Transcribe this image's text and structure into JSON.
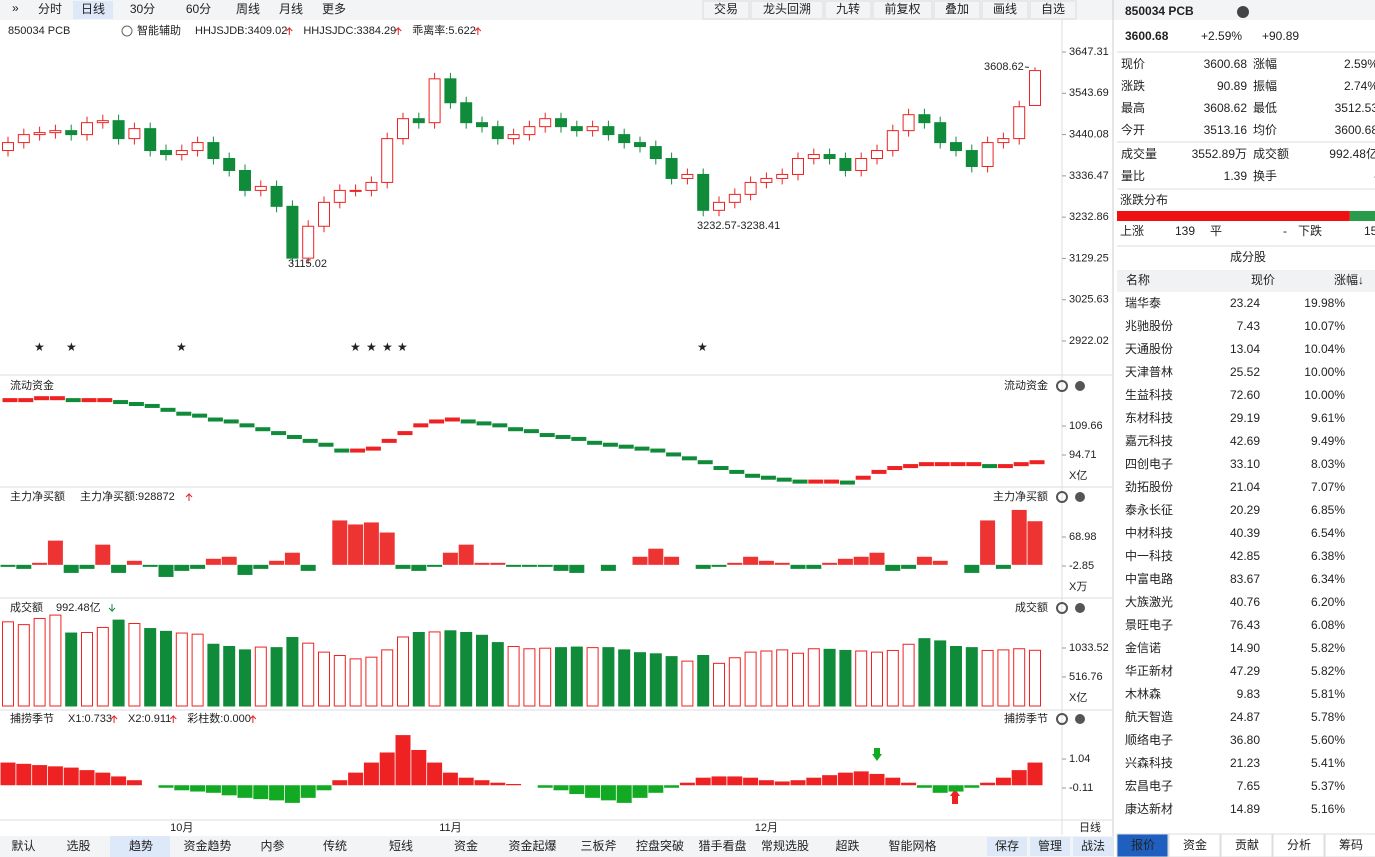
{
  "toolbar": {
    "left": [
      "分时",
      "日线",
      "30分",
      "60分",
      "周线",
      "月线",
      "更多"
    ],
    "active": 1,
    "right": [
      "交易",
      "龙头回溯",
      "九转",
      "前复权",
      "叠加",
      "画线",
      "自选"
    ]
  },
  "main": {
    "title": "850034 PCB",
    "indicator": "智能辅助",
    "items": [
      {
        "text": "HHJSJDB:3409.02",
        "color": "#d79a00"
      },
      {
        "text": "HHJSJDC:3384.29",
        "color": "#e52222"
      },
      {
        "text": "乖离率:5.622",
        "color": "#e06000"
      }
    ],
    "high_label": "3608.62",
    "low_label": "3115.02",
    "range_label": "3232.57-3238.41",
    "x_axis_label": "日线"
  },
  "panels": {
    "flow": {
      "left": "流动资金",
      "right": "流动资金",
      "unit": "X亿"
    },
    "net": {
      "left": "主力净买额",
      "value": "主力净买额:928872",
      "right": "主力净买额",
      "unit": "X万"
    },
    "volume": {
      "left": "成交额",
      "value": "992.48亿",
      "right": "成交额",
      "unit": "X亿"
    },
    "fishing": {
      "left": "捕捞季节",
      "items": [
        {
          "text": "X1:0.733",
          "color": "#e0a000"
        },
        {
          "text": "X2:0.911",
          "color": "#e020e0"
        },
        {
          "text": "彩柱数:0.000",
          "color": "#209020"
        }
      ],
      "right": "捕捞季节"
    }
  },
  "chart_data": [
    {
      "type": "candlestick",
      "categories": [
        null,
        null,
        null,
        null,
        null,
        null,
        null,
        null,
        null,
        null,
        null,
        "10月",
        null,
        null,
        null,
        null,
        null,
        null,
        null,
        null,
        null,
        null,
        null,
        null,
        null,
        null,
        null,
        null,
        "11月",
        null,
        null,
        null,
        null,
        null,
        null,
        null,
        null,
        null,
        null,
        null,
        null,
        null,
        null,
        null,
        null,
        null,
        null,
        null,
        "12月",
        null,
        null,
        null,
        null,
        null,
        null,
        null,
        null,
        null,
        null,
        null,
        null,
        null,
        null,
        null,
        null,
        null
      ],
      "open": [
        3400,
        3420,
        3440,
        3445,
        3450,
        3440,
        3470,
        3475,
        3430,
        3455,
        3400,
        3390,
        3400,
        3420,
        3380,
        3350,
        3300,
        3310,
        3260,
        3130,
        3210,
        3270,
        3300,
        3300,
        3320,
        3430,
        3480,
        3470,
        3580,
        3520,
        3470,
        3460,
        3430,
        3440,
        3460,
        3480,
        3460,
        3450,
        3460,
        3440,
        3420,
        3410,
        3380,
        3330,
        3340,
        3250,
        3270,
        3290,
        3320,
        3330,
        3340,
        3380,
        3390,
        3380,
        3350,
        3380,
        3400,
        3450,
        3490,
        3470,
        3420,
        3400,
        3360,
        3420,
        3430,
        3513.16
      ],
      "high": [
        3435,
        3455,
        3460,
        3465,
        3465,
        3485,
        3490,
        3490,
        3470,
        3470,
        3415,
        3415,
        3435,
        3435,
        3395,
        3365,
        3325,
        3325,
        3275,
        3225,
        3285,
        3315,
        3315,
        3335,
        3445,
        3495,
        3495,
        3595,
        3595,
        3535,
        3485,
        3475,
        3455,
        3475,
        3495,
        3495,
        3475,
        3475,
        3475,
        3455,
        3435,
        3425,
        3395,
        3355,
        3355,
        3285,
        3305,
        3335,
        3345,
        3355,
        3395,
        3405,
        3405,
        3395,
        3395,
        3415,
        3465,
        3505,
        3505,
        3485,
        3435,
        3415,
        3435,
        3445,
        3525,
        3608.62
      ],
      "low": [
        3385,
        3405,
        3425,
        3430,
        3425,
        3425,
        3455,
        3415,
        3415,
        3385,
        3375,
        3375,
        3385,
        3365,
        3335,
        3285,
        3285,
        3245,
        3115.02,
        3115,
        3195,
        3255,
        3285,
        3285,
        3305,
        3415,
        3455,
        3455,
        3505,
        3455,
        3445,
        3415,
        3415,
        3425,
        3445,
        3445,
        3435,
        3435,
        3425,
        3405,
        3395,
        3365,
        3315,
        3315,
        3235,
        3235,
        3255,
        3275,
        3305,
        3315,
        3325,
        3365,
        3365,
        3335,
        3335,
        3365,
        3385,
        3435,
        3455,
        3405,
        3385,
        3345,
        3345,
        3405,
        3415,
        3512.53
      ],
      "close": [
        3420,
        3440,
        3445,
        3450,
        3440,
        3470,
        3475,
        3430,
        3455,
        3400,
        3390,
        3400,
        3420,
        3380,
        3350,
        3300,
        3310,
        3260,
        3130,
        3210,
        3270,
        3300,
        3300,
        3320,
        3430,
        3480,
        3470,
        3580,
        3520,
        3470,
        3460,
        3430,
        3440,
        3460,
        3480,
        3460,
        3450,
        3460,
        3440,
        3420,
        3410,
        3380,
        3330,
        3340,
        3250,
        3270,
        3290,
        3320,
        3330,
        3340,
        3380,
        3390,
        3380,
        3350,
        3380,
        3400,
        3450,
        3490,
        3470,
        3420,
        3400,
        3360,
        3420,
        3430,
        3510,
        3600.68
      ],
      "color_up": "#ee2222",
      "color_down": "#0f8b3a",
      "ylim": [
        2861.8,
        3664.9
      ],
      "yticks": [
        3647.31,
        3543.69,
        3440.08,
        3336.47,
        3232.86,
        3129.25,
        3025.63,
        2922.02
      ]
    },
    {
      "type": "dash",
      "values": [
        123,
        123,
        124,
        124,
        123,
        123,
        123,
        122,
        121,
        120,
        118,
        116,
        115,
        113,
        112,
        110,
        108,
        106,
        104,
        102,
        100,
        97,
        97,
        98,
        102,
        106,
        110,
        112,
        113,
        112,
        111,
        110,
        108,
        107,
        105,
        104,
        103,
        101,
        100,
        99,
        98,
        97,
        95,
        93,
        91,
        88,
        86,
        84,
        83,
        82,
        81,
        81,
        81,
        80.5,
        83,
        86,
        88,
        89,
        90,
        90,
        90,
        90,
        89,
        89,
        90,
        91
      ],
      "color_up": "#ee2222",
      "color_down": "#0f8b3a",
      "ylim": [
        79.25,
        125.64
      ],
      "yticks": [
        109.66,
        94.71
      ]
    },
    {
      "type": "bar",
      "values": [
        -5,
        -10,
        5,
        60,
        -20,
        -10,
        50,
        -20,
        10,
        -5,
        -30,
        -15,
        -10,
        15,
        20,
        -25,
        -10,
        10,
        30,
        -15,
        0,
        110,
        100,
        105,
        80,
        -10,
        -15,
        -5,
        30,
        50,
        5,
        5,
        -5,
        -5,
        -5,
        -15,
        -20,
        0,
        -15,
        0,
        20,
        40,
        20,
        0,
        -10,
        -5,
        5,
        20,
        10,
        5,
        -10,
        -10,
        5,
        15,
        20,
        30,
        -15,
        -10,
        20,
        10,
        0,
        -20,
        110,
        -10,
        136,
        108
      ],
      "color_up": "#ee3333",
      "color_down": "#0f8b3a",
      "ylim": [
        -74.7,
        148.2
      ],
      "yticks": [
        68.98,
        -2.85
      ]
    },
    {
      "type": "volume",
      "values": [
        1500,
        1450,
        1560,
        1620,
        1300,
        1310,
        1400,
        1530,
        1470,
        1380,
        1330,
        1300,
        1280,
        1100,
        1060,
        1000,
        1050,
        1040,
        1220,
        1120,
        960,
        900,
        840,
        870,
        1000,
        1230,
        1310,
        1320,
        1340,
        1310,
        1260,
        1130,
        1060,
        1020,
        1030,
        1040,
        1050,
        1040,
        1040,
        1000,
        950,
        930,
        880,
        800,
        900,
        760,
        860,
        960,
        980,
        1000,
        940,
        1020,
        1010,
        990,
        980,
        960,
        990,
        1100,
        1200,
        1160,
        1060,
        1040,
        990,
        1000,
        1020,
        992.48
      ],
      "color_up": "#ee2222",
      "color_down": "#0f8b3a",
      "ylim": [
        0,
        1675
      ],
      "yticks": [
        1033.52,
        516.76
      ]
    },
    {
      "type": "bar",
      "values": [
        0.9,
        0.85,
        0.8,
        0.75,
        0.7,
        0.6,
        0.5,
        0.35,
        0.2,
        0.0,
        -0.1,
        -0.2,
        -0.25,
        -0.3,
        -0.4,
        -0.5,
        -0.55,
        -0.6,
        -0.7,
        -0.5,
        -0.2,
        0.2,
        0.5,
        0.9,
        1.3,
        1.99,
        1.4,
        0.9,
        0.5,
        0.3,
        0.2,
        0.1,
        0.05,
        0.0,
        -0.1,
        -0.2,
        -0.35,
        -0.5,
        -0.6,
        -0.7,
        -0.5,
        -0.3,
        -0.1,
        0.1,
        0.3,
        0.35,
        0.35,
        0.3,
        0.2,
        0.15,
        0.2,
        0.3,
        0.4,
        0.5,
        0.55,
        0.45,
        0.3,
        0.1,
        -0.1,
        -0.3,
        -0.25,
        -0.1,
        0.1,
        0.3,
        0.6,
        0.9
      ],
      "color_up": "#ee2222",
      "color_down": "#11aa22",
      "ylim": [
        -1.3,
        2.51
      ],
      "yticks": [
        1.04,
        -0.11
      ]
    }
  ],
  "quote": {
    "title": "850034 PCB",
    "price": "3600.68",
    "pct": "+2.59%",
    "change": "+90.89",
    "fields": [
      {
        "label": "现价",
        "value": "3600.68",
        "color": "#e52222"
      },
      {
        "label": "涨幅",
        "value": "2.59%",
        "color": "#e52222"
      },
      {
        "label": "涨跌",
        "value": "90.89",
        "color": "#e52222"
      },
      {
        "label": "振幅",
        "value": "2.74%",
        "color": "#222"
      },
      {
        "label": "最高",
        "value": "3608.62",
        "color": "#e52222"
      },
      {
        "label": "最低",
        "value": "3512.53",
        "color": "#e52222"
      },
      {
        "label": "今开",
        "value": "3513.16",
        "color": "#e52222"
      },
      {
        "label": "均价",
        "value": "3600.68",
        "color": "#e52222"
      },
      {
        "label": "成交量",
        "value": "3552.89万",
        "color": "#222"
      },
      {
        "label": "成交额",
        "value": "992.48亿",
        "color": "#222"
      },
      {
        "label": "量比",
        "value": "1.39",
        "color": "#222"
      },
      {
        "label": "换手",
        "value": "-",
        "color": "#222"
      }
    ]
  },
  "distribution": {
    "title": "涨跌分布",
    "up_label": "上涨",
    "up": 139,
    "flat_label": "平",
    "flat": "-",
    "down_label": "下跌",
    "down": 15
  },
  "constituents": {
    "title": "成分股",
    "header": [
      "名称",
      "现价",
      "涨幅↓"
    ],
    "rows": [
      {
        "name": "瑞华泰",
        "price": "23.24",
        "pct": "19.98%",
        "color": "#e0157a"
      },
      {
        "name": "兆驰股份",
        "price": "7.43",
        "pct": "10.07%",
        "color": "#222"
      },
      {
        "name": "天通股份",
        "price": "13.04",
        "pct": "10.04%",
        "color": "#222"
      },
      {
        "name": "天津普林",
        "price": "25.52",
        "pct": "10.00%",
        "color": "#222"
      },
      {
        "name": "生益科技",
        "price": "72.60",
        "pct": "10.00%",
        "color": "#222"
      },
      {
        "name": "东材科技",
        "price": "29.19",
        "pct": "9.61%",
        "color": "#222"
      },
      {
        "name": "嘉元科技",
        "price": "42.69",
        "pct": "9.49%",
        "color": "#222"
      },
      {
        "name": "四创电子",
        "price": "33.10",
        "pct": "8.03%",
        "color": "#222"
      },
      {
        "name": "劲拓股份",
        "price": "21.04",
        "pct": "7.07%",
        "color": "#222"
      },
      {
        "name": "泰永长征",
        "price": "20.29",
        "pct": "6.85%",
        "color": "#222"
      },
      {
        "name": "中材科技",
        "price": "40.39",
        "pct": "6.54%",
        "color": "#222"
      },
      {
        "name": "中一科技",
        "price": "42.85",
        "pct": "6.38%",
        "color": "#222"
      },
      {
        "name": "中富电路",
        "price": "83.67",
        "pct": "6.34%",
        "color": "#222"
      },
      {
        "name": "大族激光",
        "price": "40.76",
        "pct": "6.20%",
        "color": "#222"
      },
      {
        "name": "景旺电子",
        "price": "76.43",
        "pct": "6.08%",
        "color": "#2a6fd6"
      },
      {
        "name": "金信诺",
        "price": "14.90",
        "pct": "5.82%",
        "color": "#222"
      },
      {
        "name": "华正新材",
        "price": "47.29",
        "pct": "5.82%",
        "color": "#222"
      },
      {
        "name": "木林森",
        "price": "9.83",
        "pct": "5.81%",
        "color": "#222"
      },
      {
        "name": "航天智造",
        "price": "24.87",
        "pct": "5.78%",
        "color": "#2a6fd6"
      },
      {
        "name": "顺络电子",
        "price": "36.80",
        "pct": "5.60%",
        "color": "#222"
      },
      {
        "name": "兴森科技",
        "price": "21.23",
        "pct": "5.41%",
        "color": "#222"
      },
      {
        "name": "宏昌电子",
        "price": "7.65",
        "pct": "5.37%",
        "color": "#222"
      },
      {
        "name": "康达新材",
        "price": "14.89",
        "pct": "5.16%",
        "color": "#222"
      }
    ]
  },
  "bottom_tabs": {
    "left": [
      "默认",
      "选股",
      "趋势",
      "资金趋势",
      "内参",
      "传统",
      "短线",
      "资金",
      "资金起爆",
      "三板斧",
      "控盘突破",
      "猎手看盘",
      "常规选股",
      "超跌",
      "智能网格"
    ],
    "active": 2,
    "right": [
      "保存",
      "管理",
      "战法"
    ]
  },
  "side_tabs": {
    "items": [
      "报价",
      "资金",
      "贡献",
      "分析",
      "筹码"
    ],
    "active": 0
  }
}
